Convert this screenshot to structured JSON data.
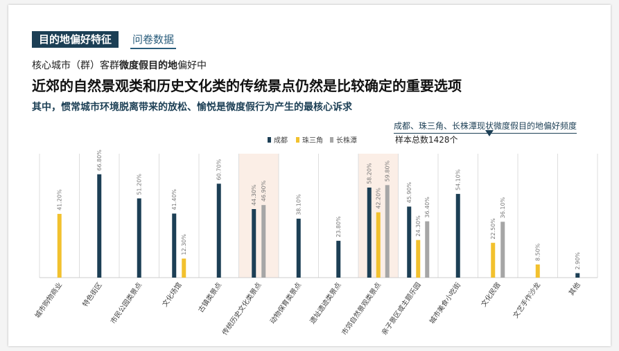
{
  "header": {
    "tag": "目的地偏好特征",
    "tag2": "问卷数据",
    "sub1_prefix": "核心城市（群）客群",
    "sub1_bold": "微度假目的地",
    "sub1_suffix": "偏好中",
    "headline": "近郊的自然景观类和历史文化类的传统景点仍然是比较确定的重要选项",
    "sub2": "其中，惯常城市环境脱离带来的放松、愉悦是微度假行为产生的最核心诉求"
  },
  "chart_title": "成都、珠三角、长株潭现状微度假目的地偏好频度",
  "chart_note": "样本总数1428个",
  "colors": {
    "chengdu": "#1c3f55",
    "zhusanjiao": "#f2c12e",
    "changzhutan": "#a6a6a6",
    "highlight": "#fbeee6",
    "grid": "#dddddd",
    "label": "#777777"
  },
  "chart_data": {
    "type": "bar",
    "categories": [
      "城市购物商业",
      "特色街区",
      "市民公园类景点",
      "文化场馆",
      "古镇类景点",
      "传统历史文化类景点",
      "动物保育类景点",
      "遗址遗迹类景点",
      "市郊自然景观类景点",
      "亲子景区或主题乐园",
      "城市美食小吃街",
      "文化民宿",
      "文艺手作沙龙",
      "其他"
    ],
    "series": [
      {
        "name": "成都",
        "values": [
          null,
          66.8,
          51.2,
          41.4,
          60.7,
          44.3,
          38.1,
          23.8,
          58.2,
          45.9,
          54.1,
          null,
          null,
          2.9
        ]
      },
      {
        "name": "珠三角",
        "values": [
          41.2,
          null,
          null,
          12.3,
          null,
          null,
          null,
          null,
          42.2,
          24.3,
          null,
          22.5,
          8.5,
          null
        ]
      },
      {
        "name": "长株潭",
        "values": [
          null,
          null,
          null,
          null,
          null,
          46.9,
          null,
          null,
          59.8,
          36.4,
          null,
          36.1,
          null,
          null
        ]
      }
    ],
    "highlighted_categories": [
      "传统历史文化类景点",
      "市郊自然景观类景点"
    ],
    "value_labels": [
      "41.20%",
      "66.80%",
      "51.20%",
      "41.40%",
      "12.30%",
      "60.70%",
      "44.30%",
      "46.90%",
      "38.10%",
      "23.80%",
      "58.20%",
      "42.20%",
      "59.80%",
      "45.90%",
      "24.30%",
      "36.40%",
      "54.10%",
      "22.50%",
      "36.10%",
      "8.50%",
      "2.90%"
    ],
    "ylim": [
      0,
      80
    ],
    "legend_position": "top-center"
  }
}
